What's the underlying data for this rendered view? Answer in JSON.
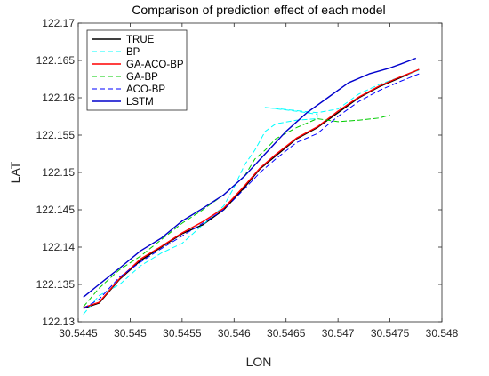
{
  "chart_data": {
    "type": "line",
    "title": "Comparison of prediction effect of each model",
    "xlabel": "LON",
    "ylabel": "LAT",
    "xlim": [
      30.5445,
      30.548
    ],
    "ylim": [
      122.13,
      122.17
    ],
    "xticks": [
      30.5445,
      30.545,
      30.5455,
      30.546,
      30.5465,
      30.547,
      30.5475,
      30.548
    ],
    "yticks": [
      122.13,
      122.135,
      122.14,
      122.145,
      122.15,
      122.155,
      122.16,
      122.165,
      122.17
    ],
    "xtick_labels": [
      "30.5445",
      "30.545",
      "30.5455",
      "30.546",
      "30.5465",
      "30.547",
      "30.5475",
      "30.548"
    ],
    "ytick_labels": [
      "122.13",
      "122.135",
      "122.14",
      "122.145",
      "122.15",
      "122.155",
      "122.16",
      "122.165",
      "122.17"
    ],
    "grid": false,
    "legend_position": "top-left",
    "series": [
      {
        "name": "TRUE",
        "color": "#000000",
        "dash": "solid",
        "x": [
          30.54455,
          30.5447,
          30.5449,
          30.5451,
          30.5453,
          30.5455,
          30.5457,
          30.5459,
          30.5461,
          30.54625,
          30.5464,
          30.5466,
          30.5468,
          30.547,
          30.5472,
          30.5474,
          30.5476,
          30.54778
        ],
        "y": [
          122.1318,
          122.1325,
          122.1357,
          122.1382,
          122.14,
          122.1418,
          122.143,
          122.145,
          122.148,
          122.1505,
          122.1522,
          122.1545,
          122.156,
          122.158,
          122.16,
          122.1615,
          122.1627,
          122.1638
        ]
      },
      {
        "name": "BP",
        "color": "#00ffff",
        "dash": "dashed",
        "x": [
          30.54455,
          30.5447,
          30.5449,
          30.5451,
          30.5453,
          30.5455,
          30.5457,
          30.5459,
          30.546,
          30.5461,
          30.5462,
          30.5463,
          30.5464,
          30.5466,
          30.5468,
          30.5468,
          30.5466,
          30.5463,
          30.5468,
          30.547,
          30.5472,
          30.5474,
          30.5476,
          30.54778
        ],
        "y": [
          122.131,
          122.1335,
          122.135,
          122.1375,
          122.1392,
          122.1405,
          122.143,
          122.1455,
          122.148,
          122.151,
          122.153,
          122.1555,
          122.1565,
          122.157,
          122.1572,
          122.1578,
          122.1582,
          122.1587,
          122.158,
          122.1585,
          122.1605,
          122.1618,
          122.1628,
          122.1637
        ]
      },
      {
        "name": "GA-ACO-BP",
        "color": "#ff0000",
        "dash": "solid",
        "x": [
          30.54455,
          30.5447,
          30.5449,
          30.5451,
          30.5453,
          30.5455,
          30.5457,
          30.5459,
          30.5461,
          30.54625,
          30.5464,
          30.5466,
          30.5468,
          30.547,
          30.5472,
          30.5474,
          30.5476,
          30.54778
        ],
        "y": [
          122.1319,
          122.1326,
          122.1358,
          122.1384,
          122.1401,
          122.1419,
          122.1434,
          122.1452,
          122.1482,
          122.1506,
          122.1524,
          122.1546,
          122.1561,
          122.1582,
          122.1601,
          122.1616,
          122.1628,
          122.1638
        ]
      },
      {
        "name": "GA-BP",
        "color": "#00cc00",
        "dash": "dashed",
        "x": [
          30.54455,
          30.5447,
          30.5449,
          30.5451,
          30.5453,
          30.5455,
          30.5457,
          30.5459,
          30.5461,
          30.5462,
          30.5463,
          30.5464,
          30.5466,
          30.5468,
          30.547,
          30.5472,
          30.5474,
          30.5475
        ],
        "y": [
          122.132,
          122.1345,
          122.137,
          122.1388,
          122.141,
          122.1432,
          122.145,
          122.147,
          122.1495,
          122.1518,
          122.153,
          122.1545,
          122.156,
          122.1572,
          122.1568,
          122.157,
          122.1573,
          122.1577
        ]
      },
      {
        "name": "ACO-BP",
        "color": "#0000ff",
        "dash": "dashed",
        "x": [
          30.54455,
          30.5447,
          30.5449,
          30.5451,
          30.5453,
          30.5455,
          30.5457,
          30.5459,
          30.5461,
          30.54625,
          30.5464,
          30.5466,
          30.5468,
          30.547,
          30.5472,
          30.5474,
          30.5476,
          30.54778
        ],
        "y": [
          122.1318,
          122.133,
          122.136,
          122.138,
          122.1398,
          122.1415,
          122.1432,
          122.145,
          122.1478,
          122.15,
          122.1518,
          122.154,
          122.1552,
          122.1575,
          122.1595,
          122.161,
          122.1622,
          122.1632
        ]
      },
      {
        "name": "LSTM",
        "color": "#0000cc",
        "dash": "solid",
        "x": [
          30.54455,
          30.5447,
          30.5449,
          30.5451,
          30.5453,
          30.5455,
          30.5457,
          30.5459,
          30.5461,
          30.5463,
          30.5465,
          30.5467,
          30.5469,
          30.5471,
          30.5473,
          30.5475,
          30.5476,
          30.54775
        ],
        "y": [
          122.1333,
          122.135,
          122.1372,
          122.1395,
          122.1412,
          122.1435,
          122.1452,
          122.147,
          122.1495,
          122.1525,
          122.1555,
          122.158,
          122.16,
          122.162,
          122.1632,
          122.164,
          122.1645,
          122.1653
        ]
      }
    ]
  }
}
